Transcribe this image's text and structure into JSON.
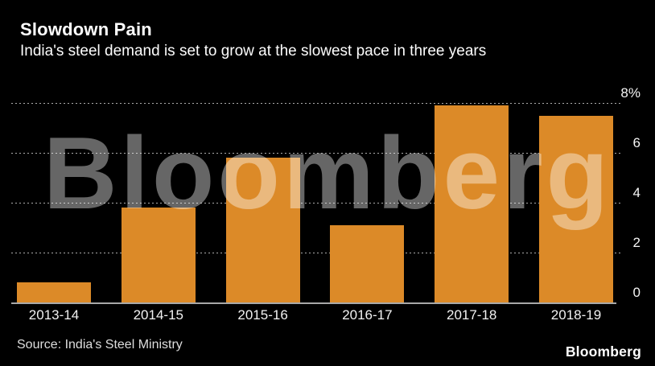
{
  "header": {
    "title": "Slowdown Pain",
    "subtitle": "India's steel demand is set to grow at the slowest pace in three years"
  },
  "watermark_text": "Bloomberg",
  "footer": {
    "source": "Source: India's Steel Ministry",
    "brand": "Bloomberg"
  },
  "colors": {
    "background": "#000000",
    "bar": "#DC8A28",
    "watermark": "rgba(255,255,255,0.40)",
    "gridline": "#ABABAB",
    "axis_text": "#F5F5F5",
    "title_text": "#FFFFFF"
  },
  "chart_data": {
    "type": "bar",
    "title": "Slowdown Pain",
    "subtitle": "India's steel demand is set to grow at the slowest pace in three years",
    "categories": [
      "2013-14",
      "2014-15",
      "2015-16",
      "2016-17",
      "2017-18",
      "2018-19"
    ],
    "values": [
      0.8,
      3.8,
      5.8,
      3.1,
      7.9,
      7.5
    ],
    "unit": "%",
    "ylim": [
      0,
      8
    ],
    "yticks": [
      {
        "value": 8,
        "label": "8%"
      },
      {
        "value": 6,
        "label": "6"
      },
      {
        "value": 4,
        "label": "4"
      },
      {
        "value": 2,
        "label": "2"
      },
      {
        "value": 0,
        "label": "0"
      }
    ],
    "grid": "horizontal-dotted",
    "y_axis_position": "right",
    "legend": "none",
    "source": "Source: India's Steel Ministry"
  }
}
